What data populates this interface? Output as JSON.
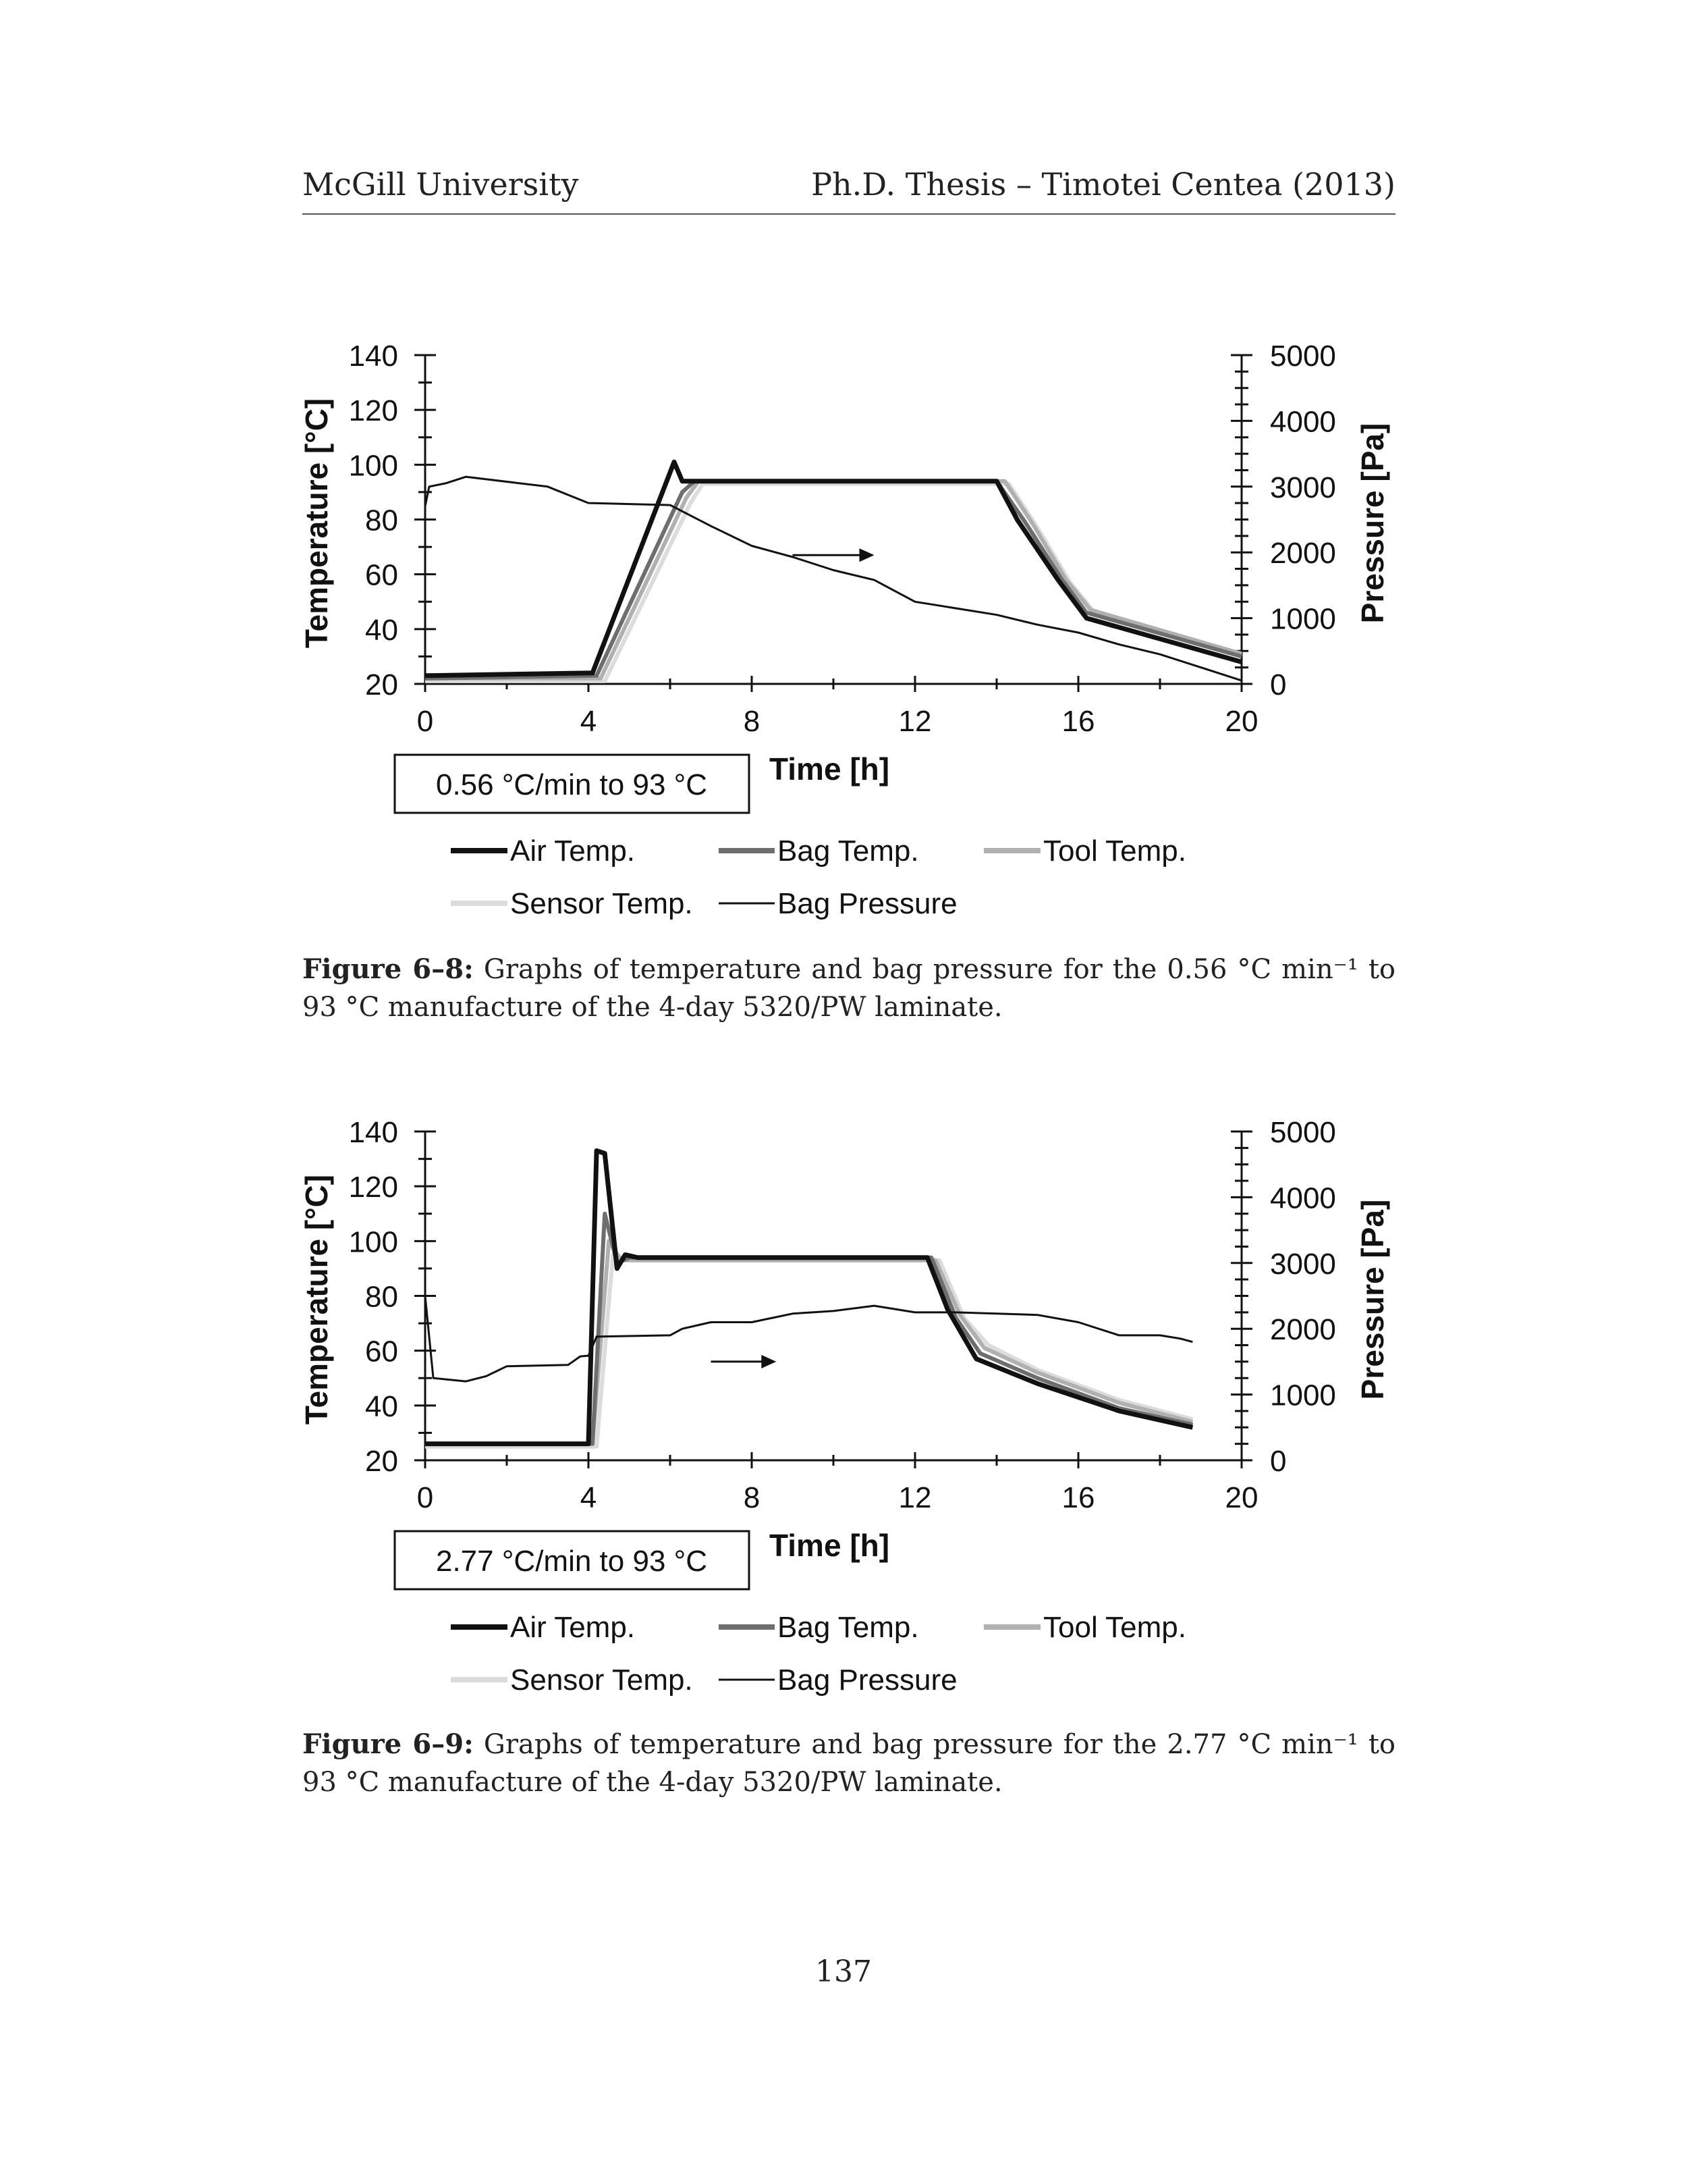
{
  "header": {
    "left": "McGill University",
    "right": "Ph.D. Thesis – Timotei Centea (2013)"
  },
  "colors": {
    "air": "#111111",
    "bag": "#6e6e6e",
    "tool": "#b0b0b0",
    "sensor": "#dcdcdc",
    "pressure": "#111111"
  },
  "figures": [
    {
      "rate_label": "0.56 °C/min to 93 °C",
      "caption_label": "Figure 6–8:",
      "caption_text": " Graphs of temperature and bag pressure for the 0.56 °C min⁻¹ to 93 °C manufacture of the 4-day 5320/PW laminate."
    },
    {
      "rate_label": "2.77 °C/min to 93 °C",
      "caption_label": "Figure 6–9:",
      "caption_text": " Graphs of temperature and bag pressure for the 2.77 °C min⁻¹ to 93 °C manufacture of the 4-day 5320/PW laminate."
    }
  ],
  "chart_data": [
    {
      "type": "line",
      "title": "",
      "xlabel": "Time [h]",
      "ylabel": "Temperature [°C]",
      "y2label": "Pressure [Pa]",
      "xlim": [
        0,
        20
      ],
      "ylim": [
        20,
        140
      ],
      "y2lim": [
        0,
        5000
      ],
      "xticks": [
        "0",
        "4",
        "8",
        "12",
        "16",
        "20"
      ],
      "yticks": [
        "20",
        "40",
        "60",
        "80",
        "100",
        "120",
        "140"
      ],
      "y2ticks": [
        "0",
        "1000",
        "2000",
        "3000",
        "4000",
        "5000"
      ],
      "arrow": {
        "from": [
          9.0,
          67
        ],
        "to": [
          11.0,
          67
        ]
      },
      "legend": [
        "Air Temp.",
        "Bag Temp.",
        "Tool Temp.",
        "Sensor Temp.",
        "Bag Pressure"
      ],
      "series": [
        {
          "name": "Air Temp.",
          "axis": "left",
          "x": [
            0,
            4.1,
            6.1,
            6.3,
            14.0,
            14.5,
            15.5,
            16.2,
            20
          ],
          "y": [
            23,
            24,
            101,
            94,
            94,
            80,
            58,
            44,
            28
          ]
        },
        {
          "name": "Bag Temp.",
          "axis": "left",
          "x": [
            0,
            4.2,
            6.3,
            6.6,
            14.0,
            14.7,
            15.6,
            16.2,
            20
          ],
          "y": [
            22,
            23,
            90,
            94,
            94,
            79,
            58,
            46,
            30
          ]
        },
        {
          "name": "Tool Temp.",
          "axis": "left",
          "x": [
            0,
            4.3,
            6.4,
            6.7,
            14.2,
            14.9,
            15.7,
            16.3,
            20
          ],
          "y": [
            22,
            22,
            88,
            94,
            94,
            78,
            58,
            47,
            31
          ]
        },
        {
          "name": "Sensor Temp.",
          "axis": "left",
          "x": [
            0,
            4.4,
            6.5,
            6.8,
            14.3,
            15.0,
            15.8,
            16.4,
            20
          ],
          "y": [
            21,
            21,
            86,
            93,
            93,
            77,
            57,
            46,
            31
          ]
        },
        {
          "name": "Bag Pressure",
          "axis": "right",
          "x": [
            0,
            0.1,
            0.5,
            1.0,
            3.0,
            4.0,
            6.0,
            7.0,
            8.0,
            9.0,
            10.0,
            11.0,
            12.0,
            13.0,
            14.0,
            15.0,
            16.0,
            17.0,
            18.0,
            19.0,
            20.0
          ],
          "y": [
            2700,
            3000,
            3050,
            3150,
            3000,
            2750,
            2720,
            2400,
            2100,
            1930,
            1730,
            1580,
            1250,
            1150,
            1050,
            900,
            780,
            600,
            450,
            250,
            50
          ]
        }
      ]
    },
    {
      "type": "line",
      "title": "",
      "xlabel": "Time [h]",
      "ylabel": "Temperature [°C]",
      "y2label": "Pressure [Pa]",
      "xlim": [
        0,
        20
      ],
      "ylim": [
        20,
        140
      ],
      "y2lim": [
        0,
        5000
      ],
      "xticks": [
        "0",
        "4",
        "8",
        "12",
        "16",
        "20"
      ],
      "yticks": [
        "20",
        "40",
        "60",
        "80",
        "100",
        "120",
        "140"
      ],
      "y2ticks": [
        "0",
        "1000",
        "2000",
        "3000",
        "4000",
        "5000"
      ],
      "arrow": {
        "from": [
          7.0,
          56
        ],
        "to": [
          8.6,
          56
        ]
      },
      "legend": [
        "Air Temp.",
        "Bag Temp.",
        "Tool Temp.",
        "Sensor Temp.",
        "Bag Pressure"
      ],
      "series": [
        {
          "name": "Air Temp.",
          "axis": "left",
          "x": [
            0,
            4.0,
            4.2,
            4.4,
            4.7,
            4.9,
            5.2,
            12.3,
            12.8,
            13.5,
            15.0,
            17.0,
            18.8
          ],
          "y": [
            26,
            26,
            133,
            132,
            90,
            95,
            94,
            94,
            75,
            57,
            48,
            38,
            32
          ]
        },
        {
          "name": "Bag Temp.",
          "axis": "left",
          "x": [
            0,
            4.1,
            4.4,
            4.7,
            5.0,
            12.4,
            13.0,
            13.6,
            15.0,
            17.0,
            18.8
          ],
          "y": [
            26,
            26,
            110,
            92,
            94,
            94,
            72,
            59,
            50,
            39,
            33
          ]
        },
        {
          "name": "Tool Temp.",
          "axis": "left",
          "x": [
            0,
            4.1,
            4.5,
            4.8,
            5.1,
            12.5,
            13.1,
            13.7,
            15.0,
            17.0,
            18.8
          ],
          "y": [
            26,
            26,
            100,
            93,
            93,
            93,
            73,
            61,
            52,
            41,
            34
          ]
        },
        {
          "name": "Sensor Temp.",
          "axis": "left",
          "x": [
            0,
            4.2,
            4.6,
            5.0,
            12.6,
            13.2,
            13.8,
            15.0,
            17.0,
            18.8
          ],
          "y": [
            25,
            25,
            95,
            93,
            93,
            72,
            62,
            53,
            42,
            35
          ]
        },
        {
          "name": "Bag Pressure",
          "axis": "right",
          "x": [
            0,
            0.2,
            1.0,
            1.5,
            2.0,
            3.5,
            3.8,
            4.0,
            4.2,
            6.0,
            6.3,
            7.0,
            8.0,
            9.0,
            10.0,
            11.0,
            12.0,
            13.0,
            14.0,
            15.0,
            16.0,
            17.0,
            18.0,
            18.5,
            18.8
          ],
          "y": [
            2500,
            1250,
            1200,
            1280,
            1430,
            1450,
            1580,
            1590,
            1880,
            1900,
            2000,
            2100,
            2100,
            2230,
            2270,
            2350,
            2250,
            2250,
            2230,
            2210,
            2100,
            1900,
            1900,
            1850,
            1800
          ]
        }
      ]
    }
  ],
  "page_number": "137"
}
